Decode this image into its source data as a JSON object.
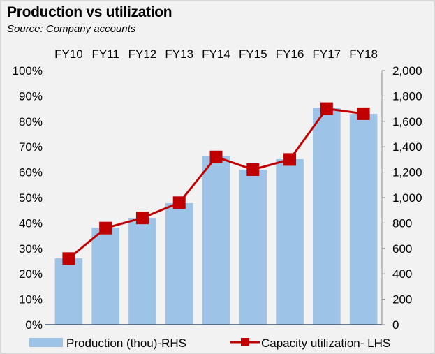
{
  "chart_data": {
    "type": "bar",
    "title": "Production vs utilization",
    "subtitle": "Source: Company accounts",
    "categories": [
      "FY10",
      "FY11",
      "FY12",
      "FY13",
      "FY14",
      "FY15",
      "FY16",
      "FY17",
      "FY18"
    ],
    "series": [
      {
        "name": "Production (thou)-RHS",
        "type": "bar",
        "axis": "right",
        "color": "#9dc3e6",
        "values": [
          522,
          764,
          840,
          956,
          1324,
          1220,
          1302,
          1708,
          1659
        ]
      },
      {
        "name": "Capacity utilization- LHS",
        "type": "line",
        "axis": "left",
        "color": "#c00000",
        "marker": "square",
        "values": [
          26,
          38,
          42,
          48,
          66,
          61,
          65,
          85,
          83
        ]
      }
    ],
    "left_axis": {
      "ylim": [
        0,
        100
      ],
      "tick_labels": [
        "0%",
        "10%",
        "20%",
        "30%",
        "40%",
        "50%",
        "60%",
        "70%",
        "80%",
        "90%",
        "100%"
      ]
    },
    "right_axis": {
      "ylim": [
        0,
        2000
      ],
      "tick_labels": [
        "0",
        "200",
        "400",
        "600",
        "800",
        "1,000",
        "1,200",
        "1,400",
        "1,600",
        "1,800",
        "2,000"
      ]
    },
    "xaxis_position": "top",
    "grid": false,
    "legend_position": "bottom"
  }
}
